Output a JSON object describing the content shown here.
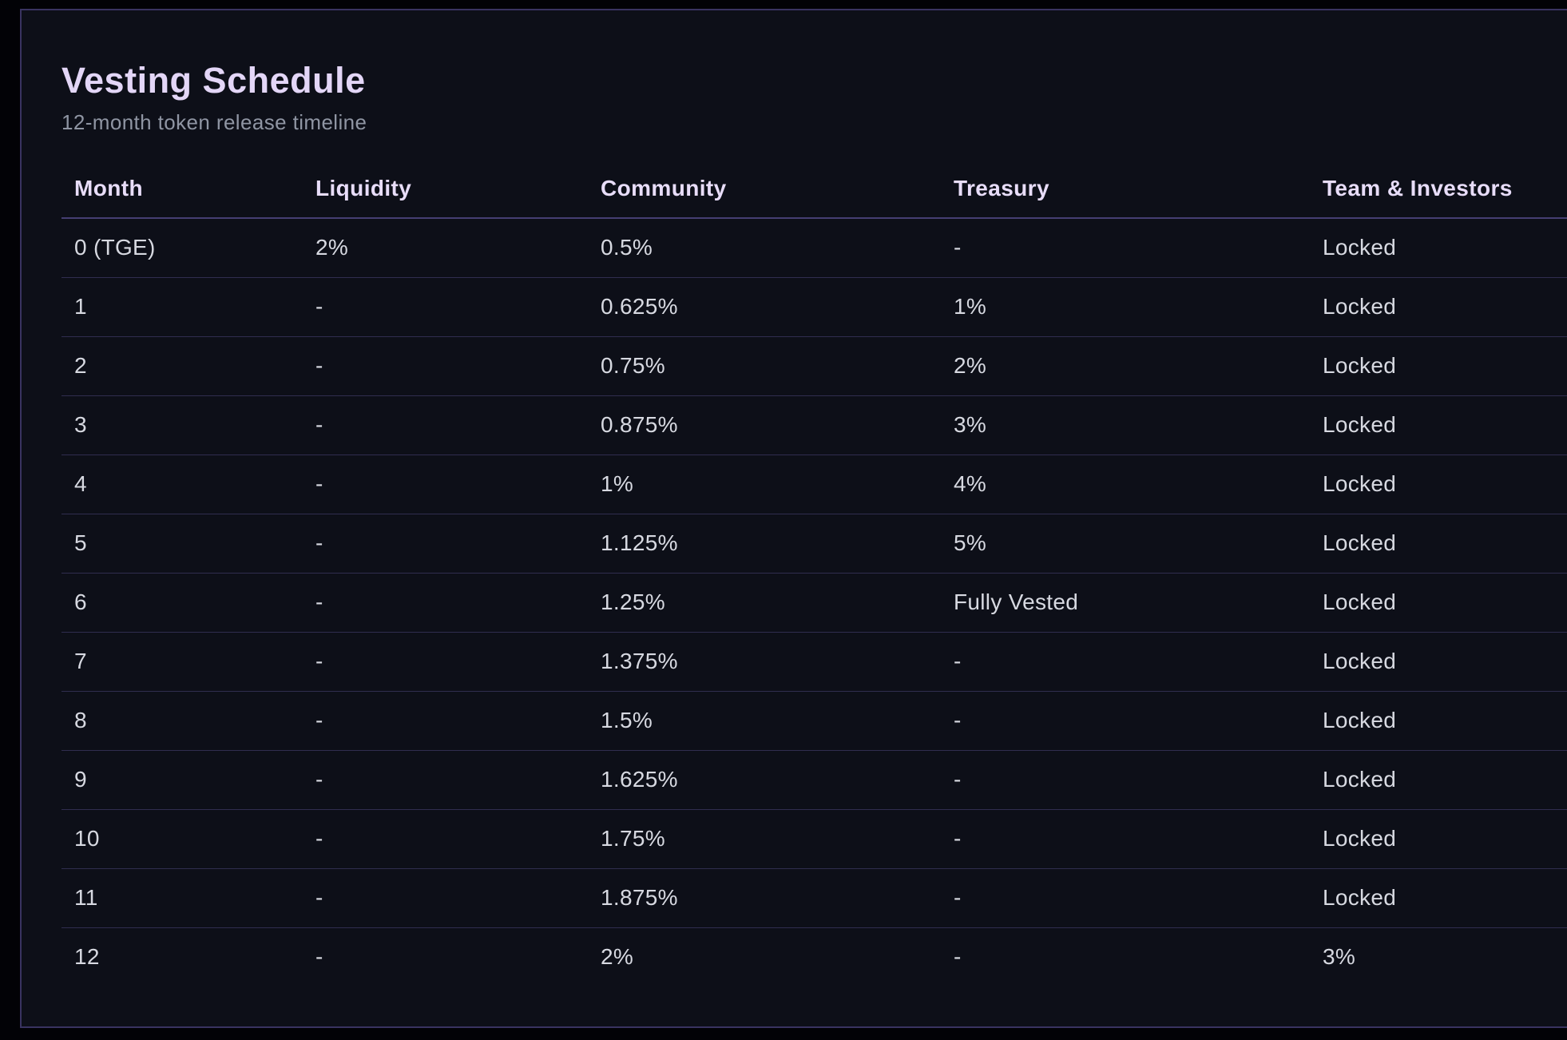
{
  "header": {
    "title": "Vesting Schedule",
    "subtitle": "12-month token release timeline"
  },
  "table": {
    "columns": [
      "Month",
      "Liquidity",
      "Community",
      "Treasury",
      "Team & Investors"
    ],
    "rows": [
      [
        "0 (TGE)",
        "2%",
        "0.5%",
        "-",
        "Locked"
      ],
      [
        "1",
        "-",
        "0.625%",
        "1%",
        "Locked"
      ],
      [
        "2",
        "-",
        "0.75%",
        "2%",
        "Locked"
      ],
      [
        "3",
        "-",
        "0.875%",
        "3%",
        "Locked"
      ],
      [
        "4",
        "-",
        "1%",
        "4%",
        "Locked"
      ],
      [
        "5",
        "-",
        "1.125%",
        "5%",
        "Locked"
      ],
      [
        "6",
        "-",
        "1.25%",
        "Fully Vested",
        "Locked"
      ],
      [
        "7",
        "-",
        "1.375%",
        "-",
        "Locked"
      ],
      [
        "8",
        "-",
        "1.5%",
        "-",
        "Locked"
      ],
      [
        "9",
        "-",
        "1.625%",
        "-",
        "Locked"
      ],
      [
        "10",
        "-",
        "1.75%",
        "-",
        "Locked"
      ],
      [
        "11",
        "-",
        "1.875%",
        "-",
        "Locked"
      ],
      [
        "12",
        "-",
        "2%",
        "-",
        "3%"
      ]
    ]
  },
  "colors": {
    "page_background": "#020206",
    "card_background": "#0d0f18",
    "card_border": "#393360",
    "title_text": "#e3d6f7",
    "subtitle_text": "#8f95a3",
    "header_text": "#e8ddf9",
    "cell_text": "#d7d9e1",
    "row_divider": "#62579e",
    "header_divider": "#453e72"
  }
}
